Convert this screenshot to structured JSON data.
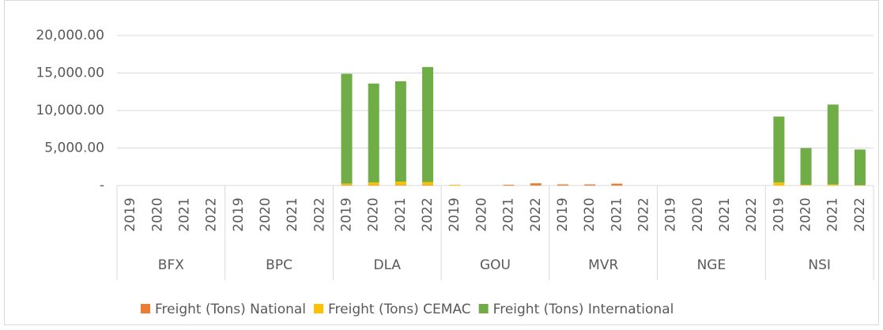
{
  "chart_data": {
    "type": "bar",
    "stacked": true,
    "categories": [
      "2019",
      "2020",
      "2021",
      "2022",
      "2019",
      "2020",
      "2021",
      "2022",
      "2019",
      "2020",
      "2021",
      "2022",
      "2019",
      "2020",
      "2021",
      "2022",
      "2019",
      "2020",
      "2021",
      "2022",
      "2019",
      "2020",
      "2021",
      "2022",
      "2019",
      "2020",
      "2021",
      "2022"
    ],
    "groups": [
      "BFX",
      "BPC",
      "DLA",
      "GOU",
      "MVR",
      "NGE",
      "NSI"
    ],
    "series": [
      {
        "name": "Freight (Tons) National",
        "color": "#ed7d31",
        "values": [
          0,
          0,
          0,
          0,
          0,
          0,
          0,
          0,
          50,
          50,
          50,
          50,
          0,
          0,
          100,
          300,
          150,
          150,
          250,
          0,
          0,
          0,
          0,
          0,
          0,
          0,
          0,
          0
        ]
      },
      {
        "name": "Freight (Tons) CEMAC",
        "color": "#ffc000",
        "values": [
          0,
          0,
          0,
          0,
          0,
          0,
          0,
          0,
          200,
          350,
          450,
          400,
          100,
          0,
          0,
          0,
          0,
          0,
          0,
          0,
          0,
          0,
          0,
          0,
          400,
          100,
          150,
          50
        ]
      },
      {
        "name": "Freight (Tons) International",
        "color": "#70ad47",
        "values": [
          0,
          0,
          0,
          0,
          0,
          0,
          0,
          0,
          14650,
          13200,
          13400,
          15350,
          0,
          0,
          0,
          0,
          0,
          0,
          0,
          0,
          0,
          0,
          0,
          0,
          8800,
          4900,
          10650,
          4750
        ]
      }
    ],
    "ylim": [
      0,
      20000
    ],
    "yticks": [
      {
        "value": 0,
        "label": "-"
      },
      {
        "value": 5000,
        "label": "5,000.00"
      },
      {
        "value": 10000,
        "label": "10,000.00"
      },
      {
        "value": 15000,
        "label": "15,000.00"
      },
      {
        "value": 20000,
        "label": "20,000.00"
      }
    ],
    "grid": true,
    "legend": "bottom"
  }
}
